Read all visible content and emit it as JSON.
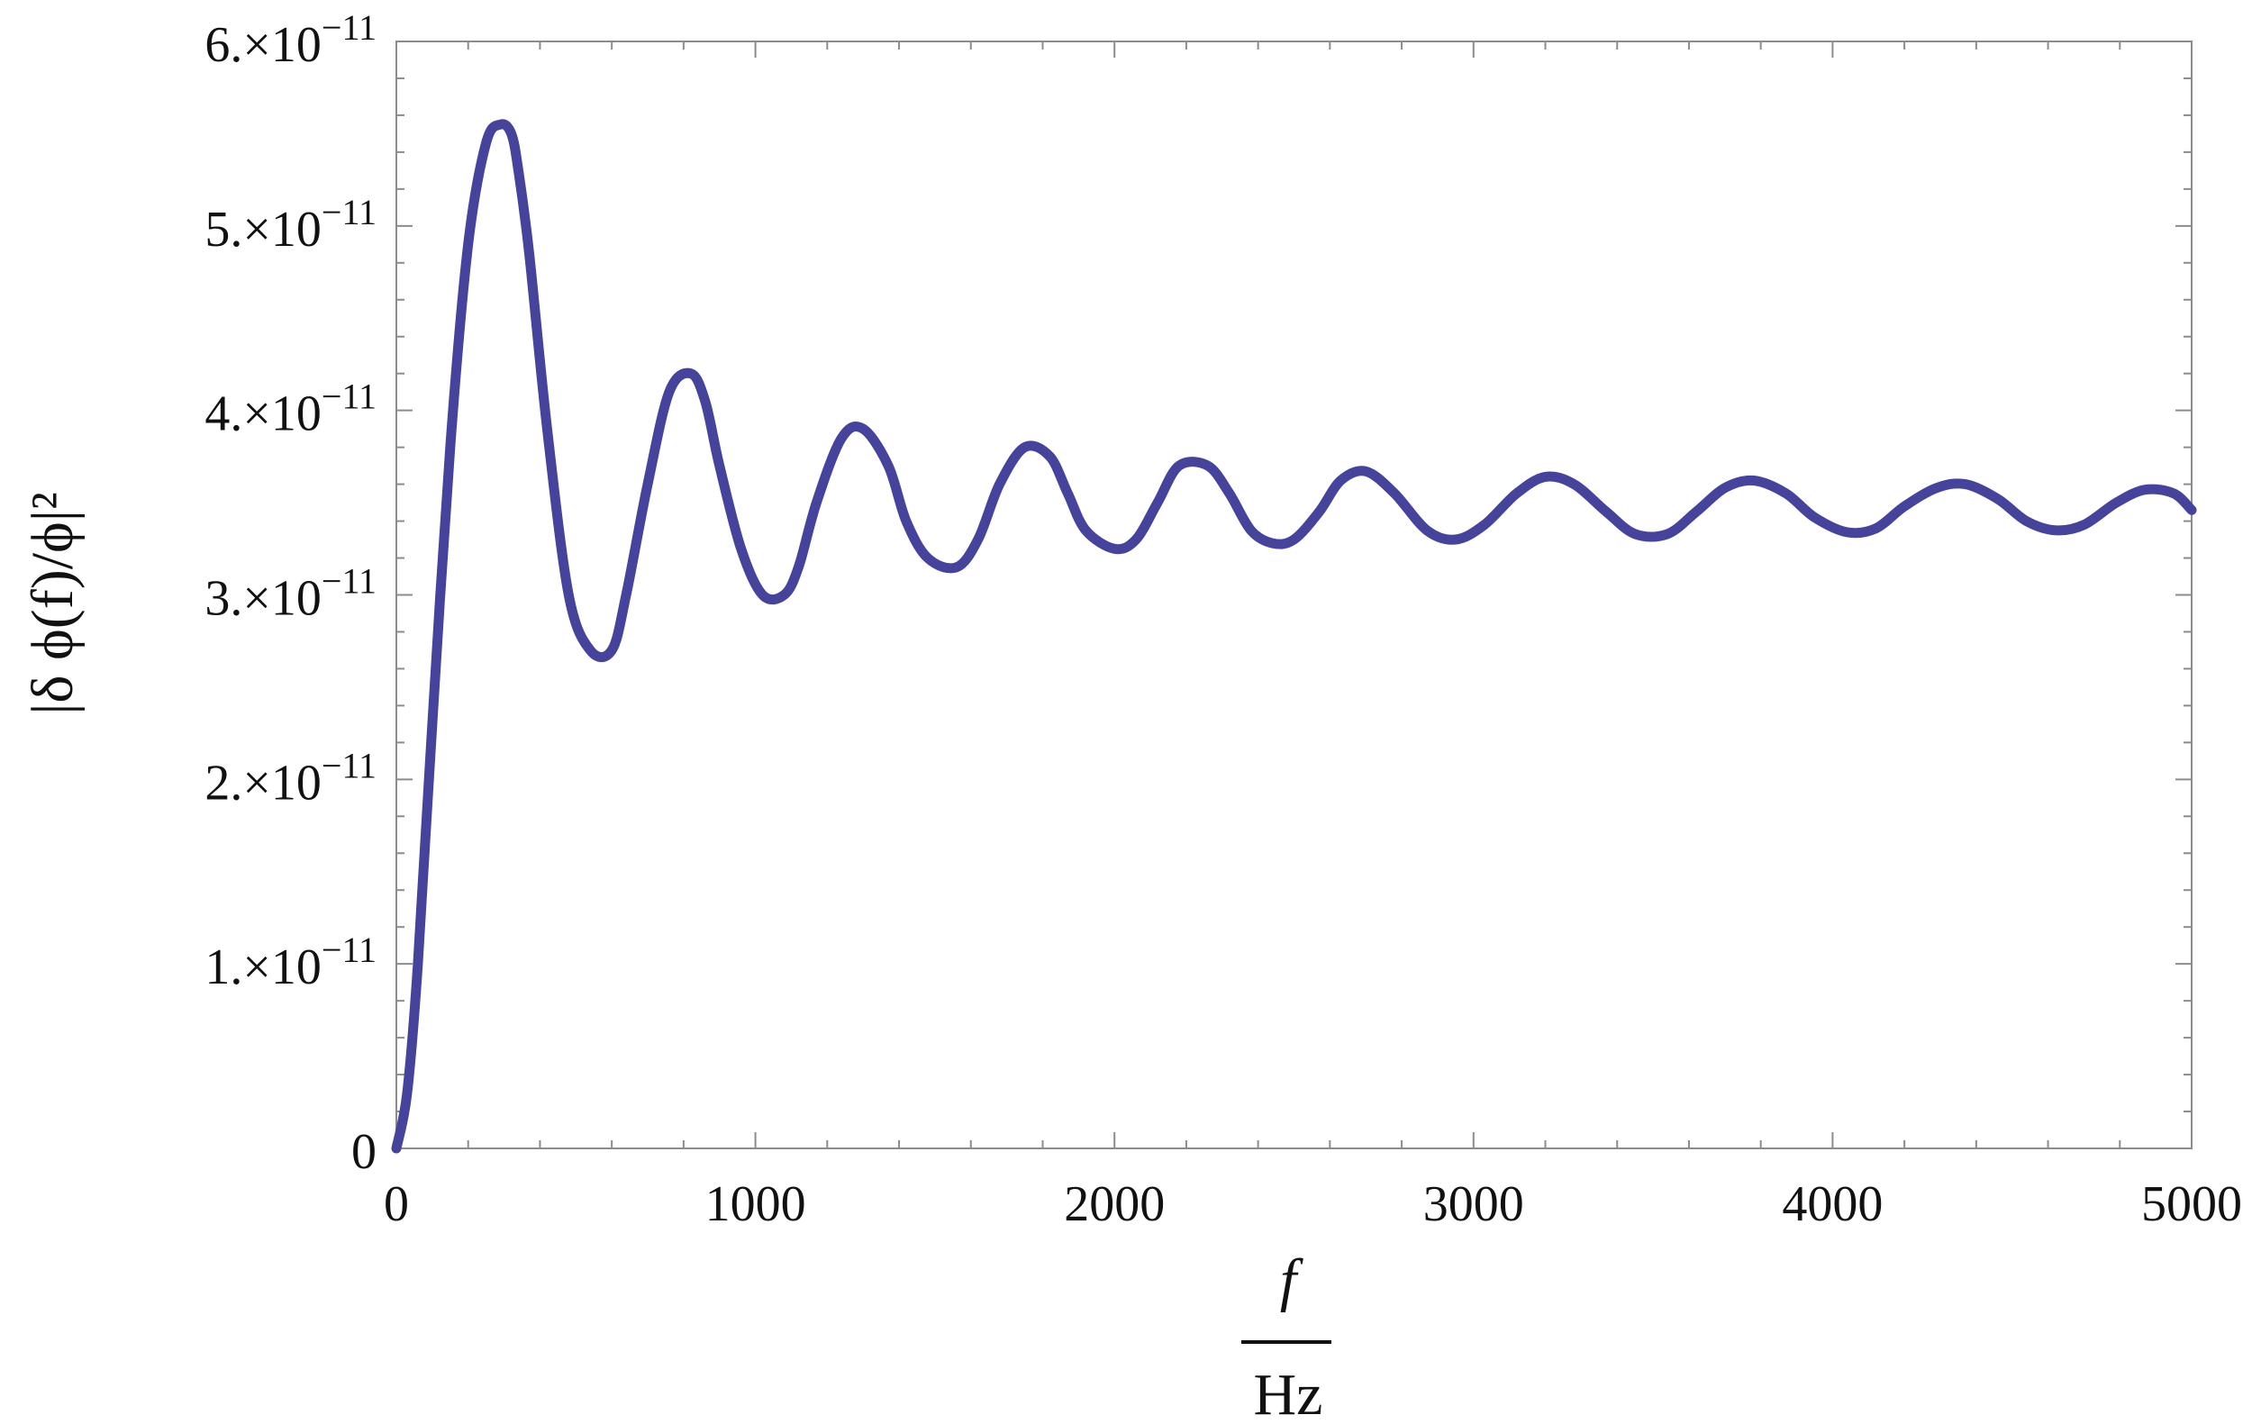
{
  "chart_data": {
    "type": "line",
    "title": "",
    "xlabel_numerator": "f",
    "xlabel_denominator": "Hz",
    "ylabel": "|δ ϕ(f)/ϕ|²",
    "xlim": [
      0,
      5000
    ],
    "ylim": [
      0,
      6e-11
    ],
    "grid": false,
    "x_ticks": [
      {
        "value": 0,
        "label": "0"
      },
      {
        "value": 1000,
        "label": "1000"
      },
      {
        "value": 2000,
        "label": "2000"
      },
      {
        "value": 3000,
        "label": "3000"
      },
      {
        "value": 4000,
        "label": "4000"
      },
      {
        "value": 5000,
        "label": "5000"
      }
    ],
    "y_ticks": [
      {
        "value": 0,
        "mantissa": "0",
        "times": "",
        "base": "",
        "exponent": ""
      },
      {
        "value": 1e-11,
        "mantissa": "1.",
        "times": "×",
        "base": "10",
        "exponent": "−11"
      },
      {
        "value": 2e-11,
        "mantissa": "2.",
        "times": "×",
        "base": "10",
        "exponent": "−11"
      },
      {
        "value": 3e-11,
        "mantissa": "3.",
        "times": "×",
        "base": "10",
        "exponent": "−11"
      },
      {
        "value": 4e-11,
        "mantissa": "4.",
        "times": "×",
        "base": "10",
        "exponent": "−11"
      },
      {
        "value": 5e-11,
        "mantissa": "5.",
        "times": "×",
        "base": "10",
        "exponent": "−11"
      },
      {
        "value": 6e-11,
        "mantissa": "6.",
        "times": "×",
        "base": "10",
        "exponent": "−11"
      }
    ],
    "series": [
      {
        "color": "#45439b",
        "x": [
          0,
          30,
          60,
          100,
          150,
          200,
          250,
          290,
          320,
          340,
          370,
          420,
          480,
          540,
          600,
          640,
          700,
          760,
          820,
          860,
          900,
          960,
          1020,
          1080,
          1120,
          1170,
          1240,
          1300,
          1370,
          1420,
          1480,
          1560,
          1620,
          1680,
          1750,
          1820,
          1870,
          1920,
          2000,
          2060,
          2120,
          2180,
          2260,
          2320,
          2380,
          2440,
          2500,
          2570,
          2630,
          2700,
          2780,
          2870,
          2950,
          3030,
          3120,
          3200,
          3280,
          3370,
          3450,
          3540,
          3620,
          3700,
          3780,
          3870,
          3950,
          4040,
          4120,
          4200,
          4290,
          4370,
          4460,
          4540,
          4620,
          4700,
          4790,
          4870,
          4950,
          5000
        ],
        "y": [
          0,
          3e-12,
          1e-11,
          2.3e-11,
          3.8e-11,
          4.9e-11,
          5.45e-11,
          5.55e-11,
          5.5e-11,
          5.3e-11,
          4.85e-11,
          3.9e-11,
          3e-11,
          2.7e-11,
          2.7e-11,
          3e-11,
          3.6e-11,
          4.1e-11,
          4.2e-11,
          4.05e-11,
          3.7e-11,
          3.25e-11,
          3e-11,
          3e-11,
          3.15e-11,
          3.5e-11,
          3.85e-11,
          3.9e-11,
          3.7e-11,
          3.4e-11,
          3.2e-11,
          3.15e-11,
          3.3e-11,
          3.6e-11,
          3.8e-11,
          3.75e-11,
          3.55e-11,
          3.35e-11,
          3.25e-11,
          3.3e-11,
          3.5e-11,
          3.7e-11,
          3.7e-11,
          3.55e-11,
          3.35e-11,
          3.28e-11,
          3.3e-11,
          3.45e-11,
          3.62e-11,
          3.67e-11,
          3.55e-11,
          3.35e-11,
          3.3e-11,
          3.38e-11,
          3.55e-11,
          3.64e-11,
          3.6e-11,
          3.45e-11,
          3.33e-11,
          3.33e-11,
          3.45e-11,
          3.58e-11,
          3.62e-11,
          3.55e-11,
          3.42e-11,
          3.34e-11,
          3.36e-11,
          3.48e-11,
          3.58e-11,
          3.6e-11,
          3.52e-11,
          3.4e-11,
          3.35e-11,
          3.38e-11,
          3.5e-11,
          3.57e-11,
          3.55e-11,
          3.46e-11
        ]
      }
    ]
  }
}
